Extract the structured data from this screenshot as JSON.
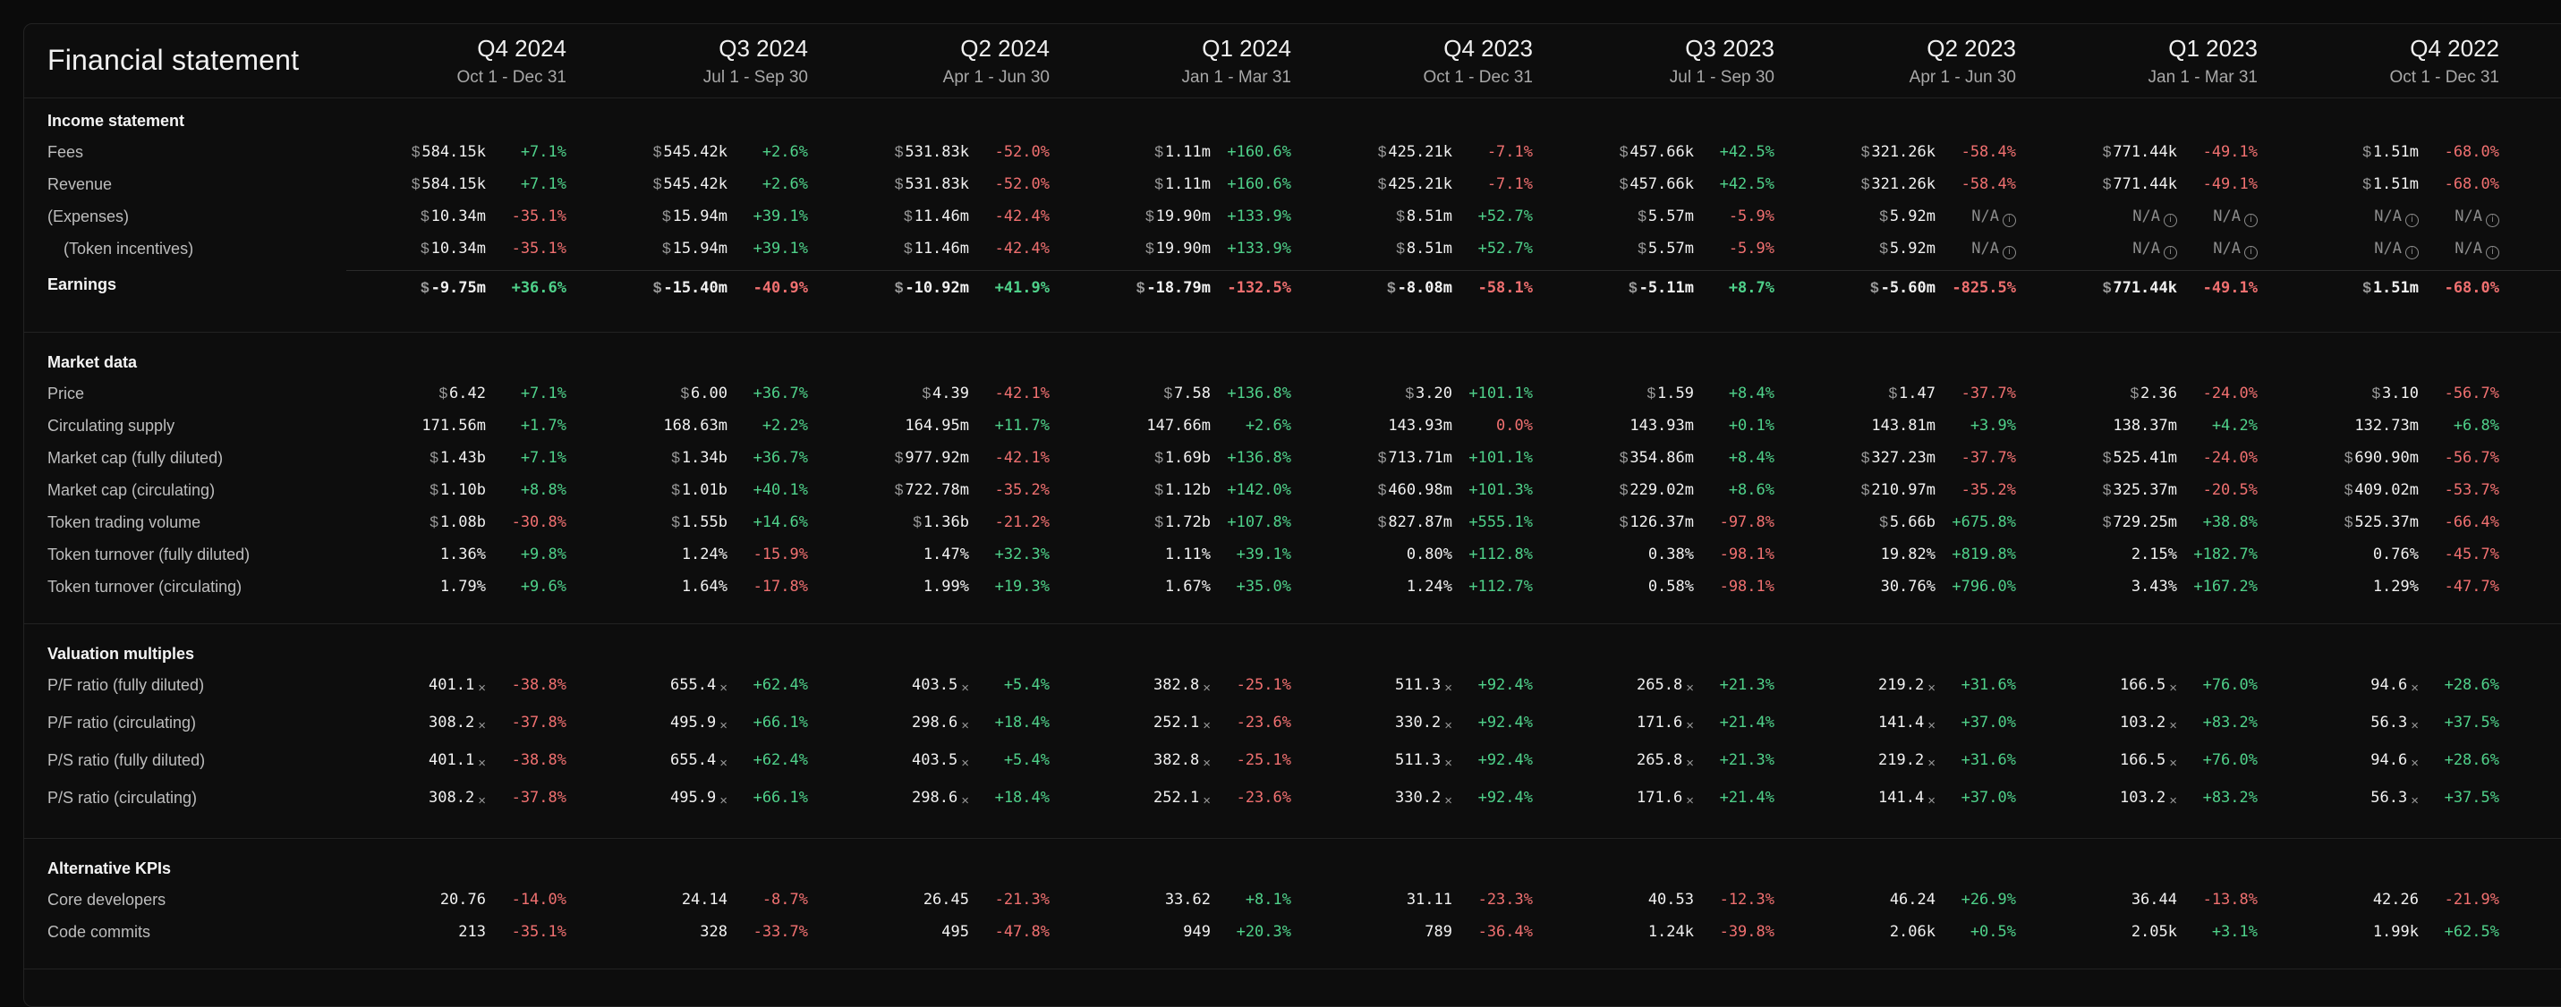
{
  "header": {
    "title": "Financial statement"
  },
  "quarters": [
    {
      "label": "Q4 2024",
      "range": "Oct 1 - Dec 31"
    },
    {
      "label": "Q3 2024",
      "range": "Jul 1 - Sep 30"
    },
    {
      "label": "Q2 2024",
      "range": "Apr 1 - Jun 30"
    },
    {
      "label": "Q1 2024",
      "range": "Jan 1 - Mar 31"
    },
    {
      "label": "Q4 2023",
      "range": "Oct 1 - Dec 31"
    },
    {
      "label": "Q3 2023",
      "range": "Jul 1 - Sep 30"
    },
    {
      "label": "Q2 2023",
      "range": "Apr 1 - Jun 30"
    },
    {
      "label": "Q1 2023",
      "range": "Jan 1 - Mar 31"
    },
    {
      "label": "Q4 2022",
      "range": "Oct 1 - Dec 31"
    }
  ],
  "currency_symbol": "$",
  "multiple_symbol": "×",
  "na_text": "N/A",
  "info_glyph": "i",
  "sections": [
    {
      "title": "Income statement",
      "rows": [
        {
          "label": "Fees",
          "cells": [
            [
              "584.15k",
              "+7.1%"
            ],
            [
              "545.42k",
              "+2.6%"
            ],
            [
              "531.83k",
              "-52.0%"
            ],
            [
              "1.11m",
              "+160.6%"
            ],
            [
              "425.21k",
              "-7.1%"
            ],
            [
              "457.66k",
              "+42.5%"
            ],
            [
              "321.26k",
              "-58.4%"
            ],
            [
              "771.44k",
              "-49.1%"
            ],
            [
              "1.51m",
              "-68.0%"
            ]
          ]
        },
        {
          "label": "Revenue",
          "cells": [
            [
              "584.15k",
              "+7.1%"
            ],
            [
              "545.42k",
              "+2.6%"
            ],
            [
              "531.83k",
              "-52.0%"
            ],
            [
              "1.11m",
              "+160.6%"
            ],
            [
              "425.21k",
              "-7.1%"
            ],
            [
              "457.66k",
              "+42.5%"
            ],
            [
              "321.26k",
              "-58.4%"
            ],
            [
              "771.44k",
              "-49.1%"
            ],
            [
              "1.51m",
              "-68.0%"
            ]
          ]
        },
        {
          "label": "(Expenses)",
          "cells": [
            [
              "10.34m",
              "-35.1%"
            ],
            [
              "15.94m",
              "+39.1%"
            ],
            [
              "11.46m",
              "-42.4%"
            ],
            [
              "19.90m",
              "+133.9%"
            ],
            [
              "8.51m",
              "+52.7%"
            ],
            [
              "5.57m",
              "-5.9%"
            ],
            [
              "5.92m",
              "N/A"
            ],
            [
              "N/A",
              "N/A"
            ],
            [
              "N/A",
              "N/A"
            ]
          ]
        },
        {
          "label": "(Token incentives)",
          "indent": true,
          "cells": [
            [
              "10.34m",
              "-35.1%"
            ],
            [
              "15.94m",
              "+39.1%"
            ],
            [
              "11.46m",
              "-42.4%"
            ],
            [
              "19.90m",
              "+133.9%"
            ],
            [
              "8.51m",
              "+52.7%"
            ],
            [
              "5.57m",
              "-5.9%"
            ],
            [
              "5.92m",
              "N/A"
            ],
            [
              "N/A",
              "N/A"
            ],
            [
              "N/A",
              "N/A"
            ]
          ]
        },
        {
          "label": "Earnings",
          "bold": true,
          "cells": [
            [
              "-9.75m",
              "+36.6%"
            ],
            [
              "-15.40m",
              "-40.9%"
            ],
            [
              "-10.92m",
              "+41.9%"
            ],
            [
              "-18.79m",
              "-132.5%"
            ],
            [
              "-8.08m",
              "-58.1%"
            ],
            [
              "-5.11m",
              "+8.7%"
            ],
            [
              "-5.60m",
              "-825.5%"
            ],
            [
              "771.44k",
              "-49.1%"
            ],
            [
              "1.51m",
              "-68.0%"
            ]
          ]
        }
      ]
    },
    {
      "title": "Market data",
      "rows": [
        {
          "label": "Price",
          "cur": true,
          "cells": [
            [
              "6.42",
              "+7.1%"
            ],
            [
              "6.00",
              "+36.7%"
            ],
            [
              "4.39",
              "-42.1%"
            ],
            [
              "7.58",
              "+136.8%"
            ],
            [
              "3.20",
              "+101.1%"
            ],
            [
              "1.59",
              "+8.4%"
            ],
            [
              "1.47",
              "-37.7%"
            ],
            [
              "2.36",
              "-24.0%"
            ],
            [
              "3.10",
              "-56.7%"
            ]
          ]
        },
        {
          "label": "Circulating supply",
          "cur": false,
          "cells": [
            [
              "171.56m",
              "+1.7%"
            ],
            [
              "168.63m",
              "+2.2%"
            ],
            [
              "164.95m",
              "+11.7%"
            ],
            [
              "147.66m",
              "+2.6%"
            ],
            [
              "143.93m",
              "0.0%"
            ],
            [
              "143.93m",
              "+0.1%"
            ],
            [
              "143.81m",
              "+3.9%"
            ],
            [
              "138.37m",
              "+4.2%"
            ],
            [
              "132.73m",
              "+6.8%"
            ]
          ]
        },
        {
          "label": "Market cap (fully diluted)",
          "cur": true,
          "cells": [
            [
              "1.43b",
              "+7.1%"
            ],
            [
              "1.34b",
              "+36.7%"
            ],
            [
              "977.92m",
              "-42.1%"
            ],
            [
              "1.69b",
              "+136.8%"
            ],
            [
              "713.71m",
              "+101.1%"
            ],
            [
              "354.86m",
              "+8.4%"
            ],
            [
              "327.23m",
              "-37.7%"
            ],
            [
              "525.41m",
              "-24.0%"
            ],
            [
              "690.90m",
              "-56.7%"
            ]
          ]
        },
        {
          "label": "Market cap (circulating)",
          "cur": true,
          "cells": [
            [
              "1.10b",
              "+8.8%"
            ],
            [
              "1.01b",
              "+40.1%"
            ],
            [
              "722.78m",
              "-35.2%"
            ],
            [
              "1.12b",
              "+142.0%"
            ],
            [
              "460.98m",
              "+101.3%"
            ],
            [
              "229.02m",
              "+8.6%"
            ],
            [
              "210.97m",
              "-35.2%"
            ],
            [
              "325.37m",
              "-20.5%"
            ],
            [
              "409.02m",
              "-53.7%"
            ]
          ]
        },
        {
          "label": "Token trading volume",
          "cur": true,
          "cells": [
            [
              "1.08b",
              "-30.8%"
            ],
            [
              "1.55b",
              "+14.6%"
            ],
            [
              "1.36b",
              "-21.2%"
            ],
            [
              "1.72b",
              "+107.8%"
            ],
            [
              "827.87m",
              "+555.1%"
            ],
            [
              "126.37m",
              "-97.8%"
            ],
            [
              "5.66b",
              "+675.8%"
            ],
            [
              "729.25m",
              "+38.8%"
            ],
            [
              "525.37m",
              "-66.4%"
            ]
          ]
        },
        {
          "label": "Token turnover (fully diluted)",
          "cur": false,
          "cells": [
            [
              "1.36%",
              "+9.8%"
            ],
            [
              "1.24%",
              "-15.9%"
            ],
            [
              "1.47%",
              "+32.3%"
            ],
            [
              "1.11%",
              "+39.1%"
            ],
            [
              "0.80%",
              "+112.8%"
            ],
            [
              "0.38%",
              "-98.1%"
            ],
            [
              "19.82%",
              "+819.8%"
            ],
            [
              "2.15%",
              "+182.7%"
            ],
            [
              "0.76%",
              "-45.7%"
            ]
          ]
        },
        {
          "label": "Token turnover (circulating)",
          "cur": false,
          "cells": [
            [
              "1.79%",
              "+9.6%"
            ],
            [
              "1.64%",
              "-17.8%"
            ],
            [
              "1.99%",
              "+19.3%"
            ],
            [
              "1.67%",
              "+35.0%"
            ],
            [
              "1.24%",
              "+112.7%"
            ],
            [
              "0.58%",
              "-98.1%"
            ],
            [
              "30.76%",
              "+796.0%"
            ],
            [
              "3.43%",
              "+167.2%"
            ],
            [
              "1.29%",
              "-47.7%"
            ]
          ]
        }
      ]
    },
    {
      "title": "Valuation multiples",
      "rows": [
        {
          "label": "P/F ratio (fully diluted)",
          "mult": true,
          "cells": [
            [
              "401.1",
              "-38.8%"
            ],
            [
              "655.4",
              "+62.4%"
            ],
            [
              "403.5",
              "+5.4%"
            ],
            [
              "382.8",
              "-25.1%"
            ],
            [
              "511.3",
              "+92.4%"
            ],
            [
              "265.8",
              "+21.3%"
            ],
            [
              "219.2",
              "+31.6%"
            ],
            [
              "166.5",
              "+76.0%"
            ],
            [
              "94.6",
              "+28.6%"
            ]
          ]
        },
        {
          "label": "P/F ratio (circulating)",
          "mult": true,
          "cells": [
            [
              "308.2",
              "-37.8%"
            ],
            [
              "495.9",
              "+66.1%"
            ],
            [
              "298.6",
              "+18.4%"
            ],
            [
              "252.1",
              "-23.6%"
            ],
            [
              "330.2",
              "+92.4%"
            ],
            [
              "171.6",
              "+21.4%"
            ],
            [
              "141.4",
              "+37.0%"
            ],
            [
              "103.2",
              "+83.2%"
            ],
            [
              "56.3",
              "+37.5%"
            ]
          ]
        },
        {
          "label": "P/S ratio (fully diluted)",
          "mult": true,
          "cells": [
            [
              "401.1",
              "-38.8%"
            ],
            [
              "655.4",
              "+62.4%"
            ],
            [
              "403.5",
              "+5.4%"
            ],
            [
              "382.8",
              "-25.1%"
            ],
            [
              "511.3",
              "+92.4%"
            ],
            [
              "265.8",
              "+21.3%"
            ],
            [
              "219.2",
              "+31.6%"
            ],
            [
              "166.5",
              "+76.0%"
            ],
            [
              "94.6",
              "+28.6%"
            ]
          ]
        },
        {
          "label": "P/S ratio (circulating)",
          "mult": true,
          "cells": [
            [
              "308.2",
              "-37.8%"
            ],
            [
              "495.9",
              "+66.1%"
            ],
            [
              "298.6",
              "+18.4%"
            ],
            [
              "252.1",
              "-23.6%"
            ],
            [
              "330.2",
              "+92.4%"
            ],
            [
              "171.6",
              "+21.4%"
            ],
            [
              "141.4",
              "+37.0%"
            ],
            [
              "103.2",
              "+83.2%"
            ],
            [
              "56.3",
              "+37.5%"
            ]
          ]
        }
      ]
    },
    {
      "title": "Alternative KPIs",
      "rows": [
        {
          "label": "Core developers",
          "cells": [
            [
              "20.76",
              "-14.0%"
            ],
            [
              "24.14",
              "-8.7%"
            ],
            [
              "26.45",
              "-21.3%"
            ],
            [
              "33.62",
              "+8.1%"
            ],
            [
              "31.11",
              "-23.3%"
            ],
            [
              "40.53",
              "-12.3%"
            ],
            [
              "46.24",
              "+26.9%"
            ],
            [
              "36.44",
              "-13.8%"
            ],
            [
              "42.26",
              "-21.9%"
            ]
          ]
        },
        {
          "label": "Code commits",
          "cells": [
            [
              "213",
              "-35.1%"
            ],
            [
              "328",
              "-33.7%"
            ],
            [
              "495",
              "-47.8%"
            ],
            [
              "949",
              "+20.3%"
            ],
            [
              "789",
              "-36.4%"
            ],
            [
              "1.24k",
              "-39.8%"
            ],
            [
              "2.06k",
              "+0.5%"
            ],
            [
              "2.05k",
              "+3.1%"
            ],
            [
              "1.99k",
              "+62.5%"
            ]
          ]
        }
      ]
    }
  ]
}
